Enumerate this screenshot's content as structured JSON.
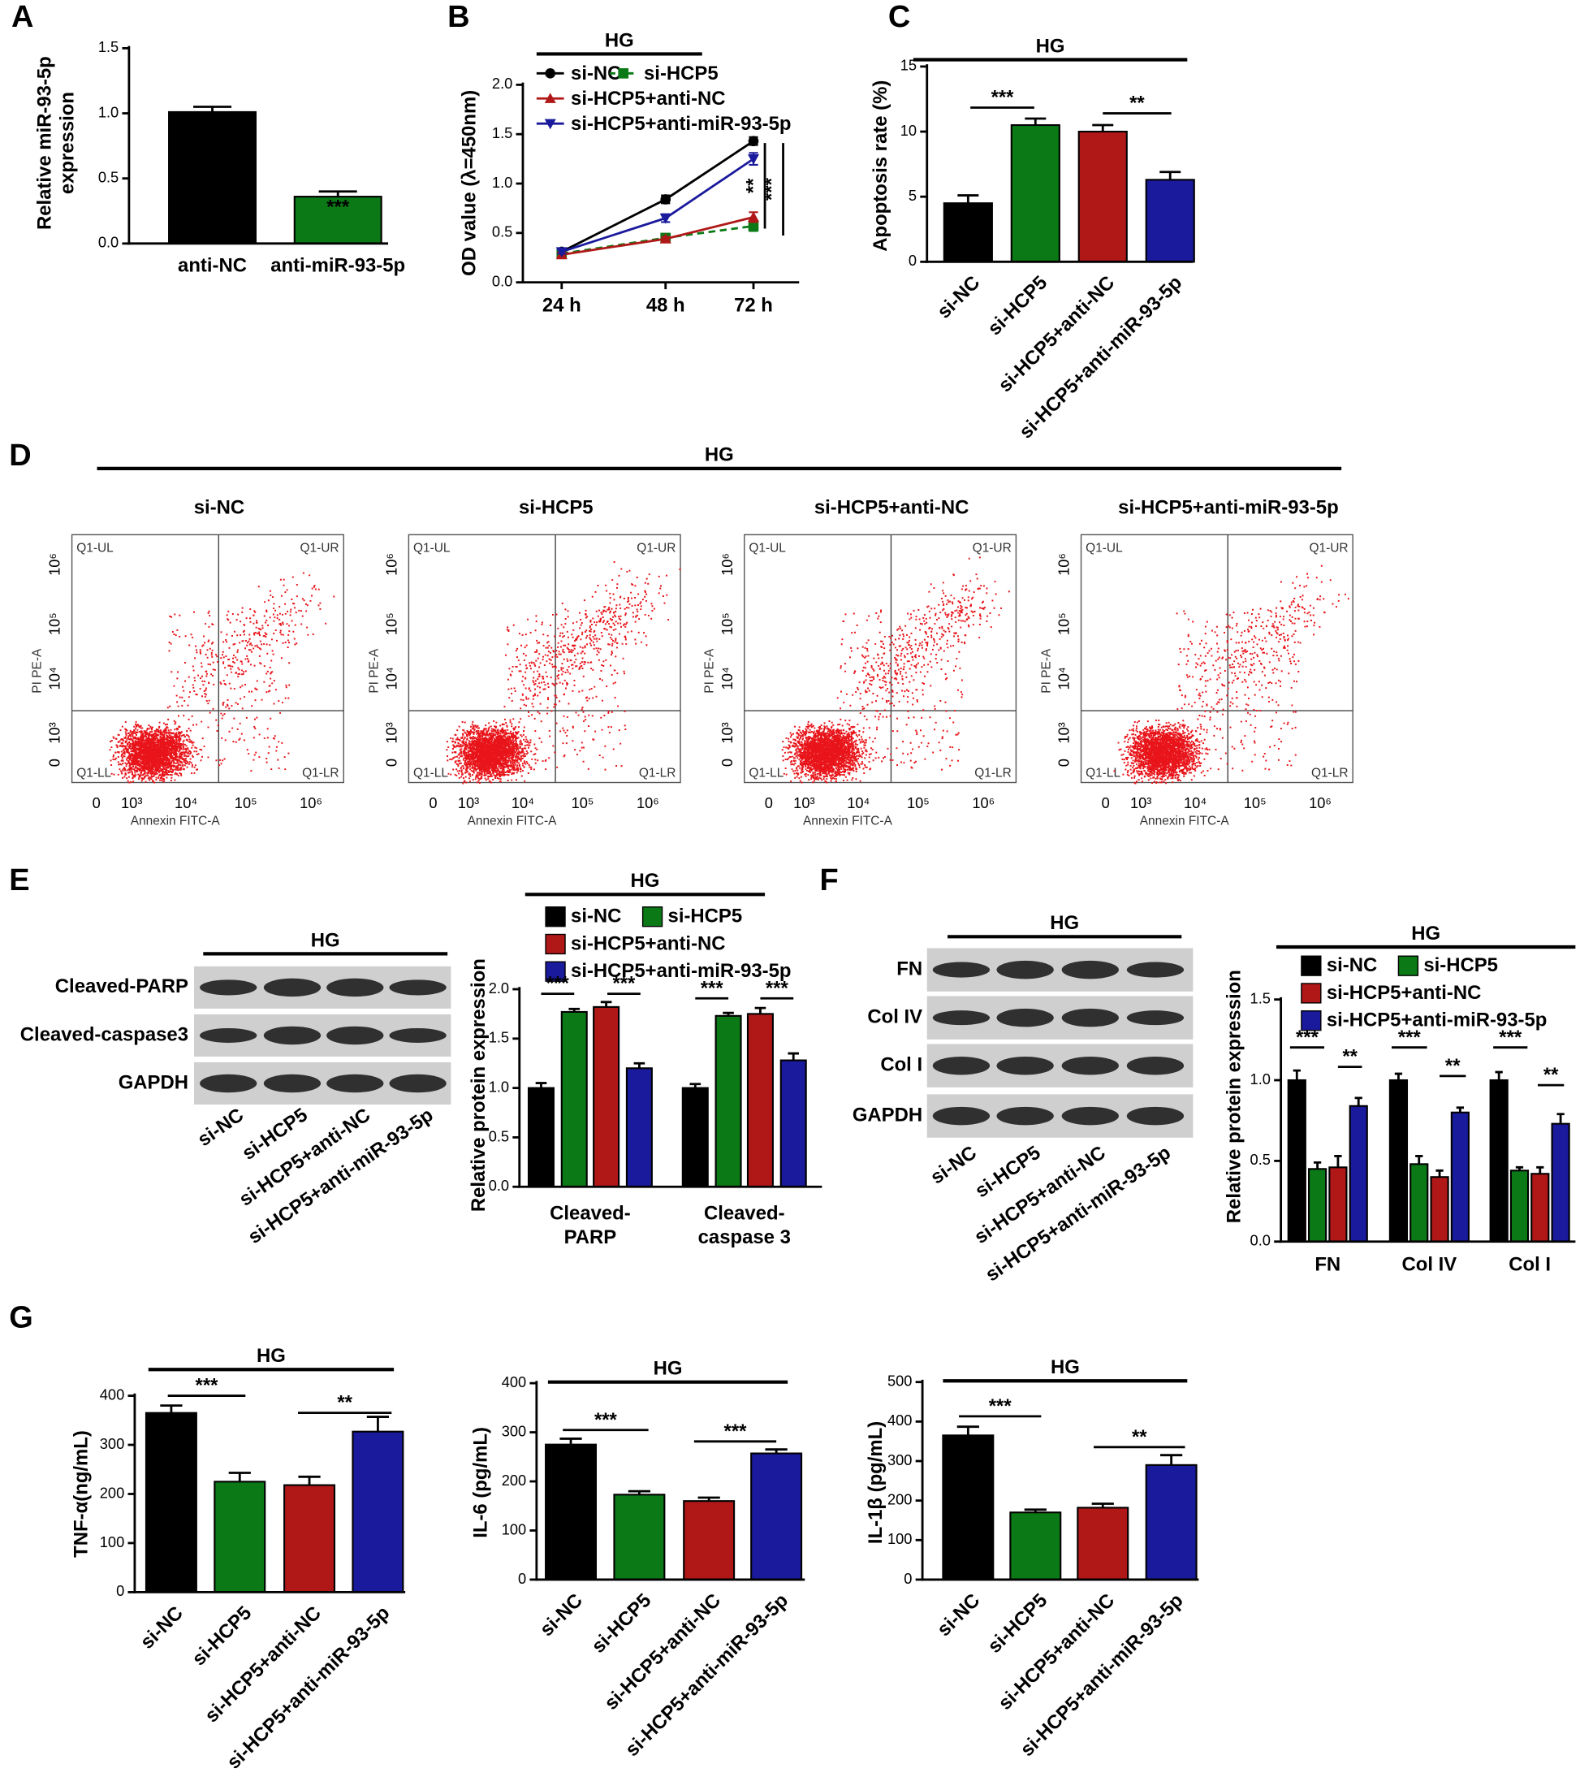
{
  "chart_data": [
    {
      "type": "bar",
      "panel": "A",
      "ylabel": [
        "Relative miR-93-5p",
        "expression"
      ],
      "categories": [
        "anti-NC",
        "anti-miR-93-5p"
      ],
      "values": [
        1.01,
        0.36
      ],
      "errors": [
        0.04,
        0.04
      ],
      "colors": [
        "#000000",
        "#0b7a16"
      ],
      "ylim": [
        0,
        1.5
      ],
      "yticks": [
        {
          "value": 0,
          "label": "0.0"
        },
        0.5,
        {
          "value": 1,
          "label": "1.0"
        },
        1.5
      ],
      "annotations": [
        "***"
      ]
    },
    {
      "type": "line",
      "panel": "B",
      "title": "HG",
      "ylabel": "OD value (λ=450nm)",
      "categories": [
        "24 h",
        "48 h",
        "72 h"
      ],
      "series": [
        {
          "name": "si-NC",
          "color": "#000000",
          "marker": "circle",
          "values": [
            0.31,
            0.84,
            1.43
          ],
          "errors": [
            0.02,
            0.04,
            0.04
          ]
        },
        {
          "name": "si-HCP5",
          "color": "#0b7a16",
          "marker": "square",
          "dashed": true,
          "values": [
            0.29,
            0.45,
            0.57
          ],
          "errors": [
            0.02,
            0.03,
            0.05
          ]
        },
        {
          "name": "si-HCP5+anti-NC",
          "color": "#b01818",
          "marker": "triangle",
          "values": [
            0.28,
            0.44,
            0.66
          ],
          "errors": [
            0.02,
            0.02,
            0.05
          ]
        },
        {
          "name": "si-HCP5+anti-miR-93-5p",
          "color": "#1a1a9c",
          "marker": "triangle-down",
          "values": [
            0.31,
            0.65,
            1.25
          ],
          "errors": [
            0.02,
            0.04,
            0.06
          ]
        }
      ],
      "ylim": [
        0,
        2
      ],
      "yticks": [
        {
          "value": 0,
          "label": "0.0"
        },
        0.5,
        {
          "value": 1,
          "label": "1.0"
        },
        1.5,
        {
          "value": 2,
          "label": "2.0"
        }
      ],
      "annotations": [
        "**",
        "***"
      ]
    },
    {
      "type": "bar",
      "panel": "C",
      "title": "HG",
      "ylabel": "Apoptosis rate (%)",
      "categories": [
        "si-NC",
        "si-HCP5",
        "si-HCP5+anti-NC",
        "si-HCP5+anti-miR-93-5p"
      ],
      "values": [
        4.5,
        10.5,
        10.0,
        6.3
      ],
      "errors": [
        0.6,
        0.5,
        0.5,
        0.6
      ],
      "colors": [
        "#000000",
        "#0b7a16",
        "#b01818",
        "#1a1a9c"
      ],
      "ylim": [
        0,
        15
      ],
      "yticks": [
        0,
        5,
        10,
        15
      ],
      "annotations": [
        "***",
        "**"
      ]
    },
    {
      "type": "flow",
      "panel": "D",
      "title": "HG",
      "categories": [
        "si-NC",
        "si-HCP5",
        "si-HCP5+anti-NC",
        "si-HCP5+anti-miR-93-5p"
      ],
      "quadrants": [
        "Q1-UL",
        "Q1-UR",
        "Q1-LL",
        "Q1-LR"
      ],
      "xlabel": "Annexin FITC-A",
      "ylabel": "PI PE-A",
      "xticks": [
        "0",
        "10³",
        "10⁴",
        "10⁵",
        "10⁶"
      ],
      "yticks": [
        "0",
        "10³",
        "10⁴",
        "10⁵",
        "10⁶"
      ]
    },
    {
      "type": "blot",
      "panel": "E",
      "title": "HG",
      "rows": [
        "Cleaved-PARP",
        "Cleaved-caspase3",
        "GAPDH"
      ],
      "categories": [
        "si-NC",
        "si-HCP5",
        "si-HCP5+anti-NC",
        "si-HCP5+anti-miR-93-5p"
      ]
    },
    {
      "type": "bar",
      "title": "HG",
      "ylabel": "Relative protein expression",
      "categories": [
        [
          "Cleaved-",
          "PARP"
        ],
        [
          "Cleaved-",
          "caspase 3"
        ]
      ],
      "series": [
        {
          "name": "si-NC",
          "color": "#000000",
          "values": [
            1.0,
            1.0
          ],
          "errors": [
            0.05,
            0.04
          ]
        },
        {
          "name": "si-HCP5",
          "color": "#0b7a16",
          "values": [
            1.77,
            1.73
          ],
          "errors": [
            0.03,
            0.03
          ]
        },
        {
          "name": "si-HCP5+anti-NC",
          "color": "#b01818",
          "values": [
            1.82,
            1.75
          ],
          "errors": [
            0.05,
            0.06
          ]
        },
        {
          "name": "si-HCP5+anti-miR-93-5p",
          "color": "#1a1a9c",
          "values": [
            1.2,
            1.28
          ],
          "errors": [
            0.05,
            0.07
          ]
        }
      ],
      "ylim": [
        0,
        2
      ],
      "yticks": [
        {
          "value": 0,
          "label": "0.0"
        },
        0.5,
        {
          "value": 1,
          "label": "1.0"
        },
        1.5,
        {
          "value": 2,
          "label": "2.0"
        }
      ],
      "annotations": [
        "***",
        "***",
        "***",
        "***"
      ]
    },
    {
      "type": "blot",
      "panel": "F",
      "title": "HG",
      "rows": [
        "FN",
        "Col IV",
        "Col I",
        "GAPDH"
      ],
      "categories": [
        "si-NC",
        "si-HCP5",
        "si-HCP5+anti-NC",
        "si-HCP5+anti-miR-93-5p"
      ]
    },
    {
      "type": "bar",
      "title": "HG",
      "ylabel": "Relative protein expression",
      "categories": [
        "FN",
        "Col IV",
        "Col I"
      ],
      "series": [
        {
          "name": "si-NC",
          "color": "#000000",
          "values": [
            1.0,
            1.0,
            1.0
          ],
          "errors": [
            0.06,
            0.04,
            0.05
          ]
        },
        {
          "name": "si-HCP5",
          "color": "#0b7a16",
          "values": [
            0.45,
            0.48,
            0.44
          ],
          "errors": [
            0.04,
            0.05,
            0.02
          ]
        },
        {
          "name": "si-HCP5+anti-NC",
          "color": "#b01818",
          "values": [
            0.46,
            0.4,
            0.42
          ],
          "errors": [
            0.07,
            0.04,
            0.04
          ]
        },
        {
          "name": "si-HCP5+anti-miR-93-5p",
          "color": "#1a1a9c",
          "values": [
            0.84,
            0.8,
            0.73
          ],
          "errors": [
            0.05,
            0.03,
            0.06
          ]
        }
      ],
      "ylim": [
        0,
        1.5
      ],
      "yticks": [
        {
          "value": 0,
          "label": "0.0"
        },
        0.5,
        {
          "value": 1,
          "label": "1.0"
        },
        1.5
      ],
      "annotations": [
        "***",
        "**",
        "***",
        "**",
        "***",
        "**"
      ]
    },
    {
      "type": "bar",
      "panel": "G",
      "title": "HG",
      "ylabel": "TNF-α(ng/mL)",
      "categories": [
        "si-NC",
        "si-HCP5",
        "si-HCP5+anti-NC",
        "si-HCP5+anti-miR-93-5p"
      ],
      "values": [
        365,
        225,
        218,
        327
      ],
      "errors": [
        15,
        18,
        17,
        30
      ],
      "colors": [
        "#000000",
        "#0b7a16",
        "#b01818",
        "#1a1a9c"
      ],
      "ylim": [
        0,
        400
      ],
      "yticks": [
        0,
        100,
        200,
        300,
        400
      ],
      "annotations": [
        "***",
        "**"
      ]
    },
    {
      "type": "bar",
      "title": "HG",
      "ylabel": "IL-6 (pg/mL)",
      "categories": [
        "si-NC",
        "si-HCP5",
        "si-HCP5+anti-NC",
        "si-HCP5+anti-miR-93-5p"
      ],
      "values": [
        275,
        173,
        160,
        257
      ],
      "errors": [
        12,
        7,
        7,
        8
      ],
      "colors": [
        "#000000",
        "#0b7a16",
        "#b01818",
        "#1a1a9c"
      ],
      "ylim": [
        0,
        400
      ],
      "yticks": [
        0,
        100,
        200,
        300,
        400
      ],
      "annotations": [
        "***",
        "***"
      ]
    },
    {
      "type": "bar",
      "title": "HG",
      "ylabel": "IL-1β (pg/mL)",
      "categories": [
        "si-NC",
        "si-HCP5",
        "si-HCP5+anti-NC",
        "si-HCP5+anti-miR-93-5p"
      ],
      "values": [
        365,
        170,
        182,
        290
      ],
      "errors": [
        22,
        7,
        10,
        25
      ],
      "colors": [
        "#000000",
        "#0b7a16",
        "#b01818",
        "#1a1a9c"
      ],
      "ylim": [
        0,
        500
      ],
      "yticks": [
        0,
        100,
        200,
        300,
        400,
        500
      ],
      "annotations": [
        "***",
        "**"
      ]
    }
  ]
}
